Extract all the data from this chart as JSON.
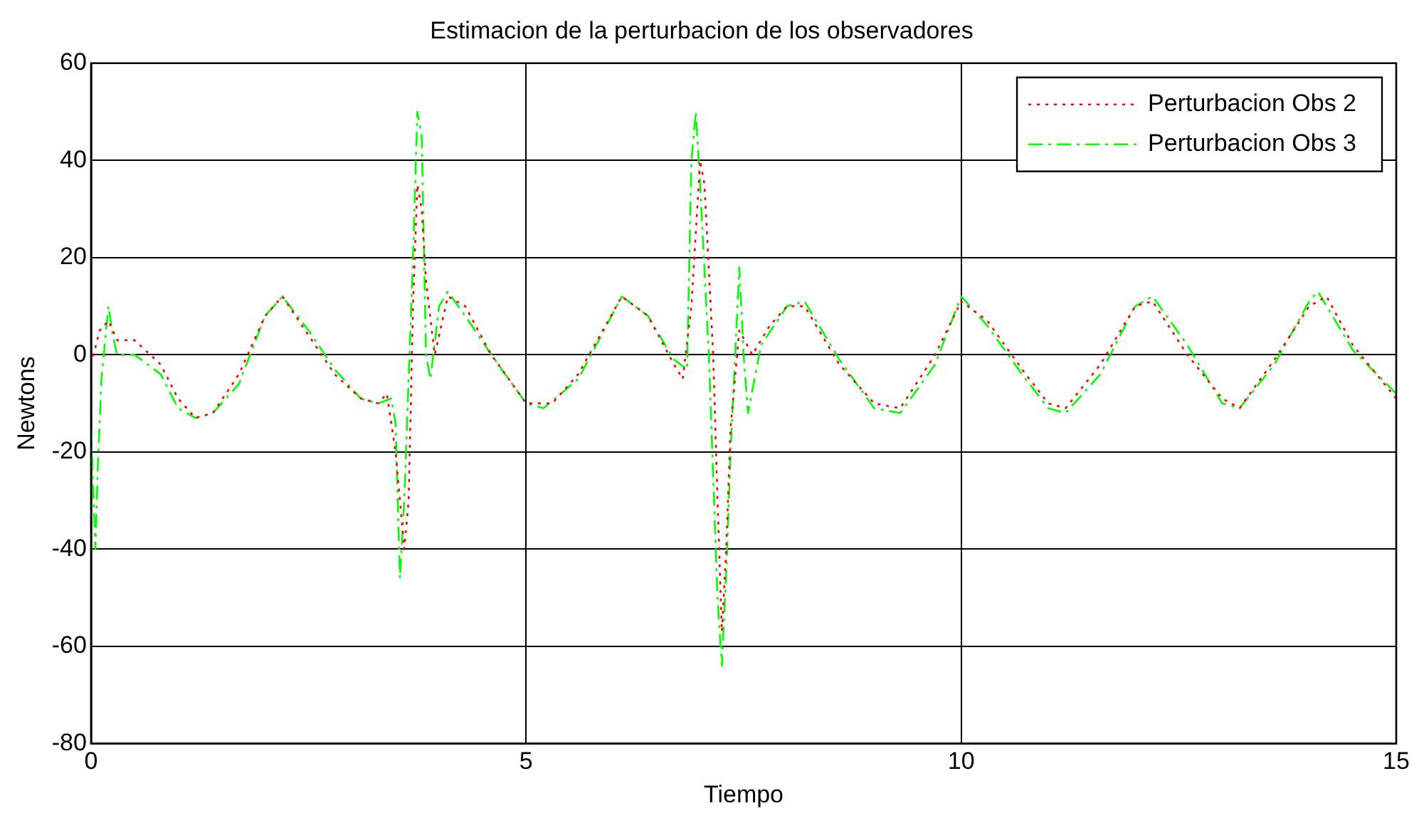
{
  "chart_data": {
    "type": "line",
    "title": "Estimacion de la perturbacion de los observadores",
    "xlabel": "Tiempo",
    "ylabel": "Newtons",
    "xlim": [
      0,
      15
    ],
    "xticks": [
      0,
      5,
      10,
      15
    ],
    "ylim": [
      -80,
      60
    ],
    "yticks": [
      -80,
      -60,
      -40,
      -20,
      0,
      20,
      40,
      60
    ],
    "grid": true,
    "legend": "top right",
    "marker": "none",
    "series": [
      {
        "name": "Perturbacion Obs 2",
        "color": "#ff0000",
        "line_style": "dotted",
        "x": [
          0,
          0.1,
          0.2,
          0.3,
          0.5,
          0.8,
          1.0,
          1.2,
          1.4,
          1.7,
          2.0,
          2.2,
          2.5,
          2.8,
          3.1,
          3.3,
          3.4,
          3.5,
          3.6,
          3.65,
          3.7,
          3.75,
          3.8,
          3.85,
          3.95,
          4.1,
          4.3,
          4.6,
          5.0,
          5.3,
          5.6,
          6.1,
          6.4,
          6.7,
          6.8,
          6.9,
          7.0,
          7.05,
          7.15,
          7.2,
          7.25,
          7.3,
          7.35,
          7.45,
          7.6,
          7.8,
          8.0,
          8.2,
          8.6,
          9.0,
          9.3,
          9.7,
          10.0,
          10.3,
          10.7,
          11.0,
          11.2,
          11.6,
          12.0,
          12.2,
          12.6,
          13.0,
          13.2,
          13.6,
          14.0,
          14.2,
          14.5,
          15
        ],
        "values": [
          -2,
          5,
          7,
          3,
          3,
          -2,
          -9,
          -13,
          -12,
          -4,
          8,
          12,
          4,
          -4,
          -9,
          -10,
          -8,
          -20,
          -40,
          -30,
          10,
          35,
          30,
          15,
          0,
          12,
          10,
          0,
          -10,
          -10,
          -4,
          12,
          8,
          -2,
          -5,
          10,
          40,
          35,
          0,
          -30,
          -57,
          -40,
          -15,
          5,
          0,
          6,
          10,
          10,
          -2,
          -10,
          -11,
          0,
          11,
          7,
          -3,
          -10,
          -11,
          -2,
          10,
          11,
          0,
          -9,
          -11,
          -1,
          10,
          12,
          2,
          -9
        ]
      },
      {
        "name": "Perturbacion Obs 3",
        "color": "#00ff00",
        "line_style": "dashdot",
        "x": [
          0,
          0.05,
          0.08,
          0.12,
          0.2,
          0.25,
          0.3,
          0.5,
          0.8,
          1.0,
          1.2,
          1.4,
          1.7,
          2.0,
          2.2,
          2.5,
          2.8,
          3.1,
          3.3,
          3.45,
          3.5,
          3.55,
          3.6,
          3.7,
          3.75,
          3.8,
          3.85,
          3.9,
          4.0,
          4.1,
          4.3,
          4.6,
          5.0,
          5.2,
          5.6,
          6.1,
          6.4,
          6.7,
          6.85,
          6.9,
          6.95,
          7.0,
          7.1,
          7.2,
          7.25,
          7.3,
          7.35,
          7.45,
          7.5,
          7.55,
          7.7,
          8.0,
          8.2,
          8.6,
          9.0,
          9.3,
          9.7,
          10.0,
          10.3,
          10.7,
          11.0,
          11.2,
          11.6,
          12.0,
          12.2,
          12.6,
          13.0,
          13.2,
          13.6,
          14.0,
          14.1,
          14.5,
          15
        ],
        "values": [
          -15,
          -40,
          -22,
          -5,
          10,
          4,
          0,
          0,
          -4,
          -11,
          -13,
          -12,
          -6,
          8,
          12,
          5,
          -3,
          -9,
          -10,
          -9,
          -14,
          -46,
          -30,
          20,
          50,
          45,
          0,
          -5,
          10,
          13,
          8,
          0,
          -10,
          -11,
          -5,
          12,
          8,
          -1,
          -3,
          40,
          50,
          35,
          0,
          -50,
          -64,
          -45,
          -20,
          18,
          0,
          -12,
          2,
          10,
          11,
          -1,
          -11,
          -12,
          -2,
          12,
          6,
          -4,
          -11,
          -12,
          -4,
          10,
          12,
          2,
          -10,
          -11,
          -2,
          11,
          13,
          1,
          -8
        ]
      }
    ]
  }
}
